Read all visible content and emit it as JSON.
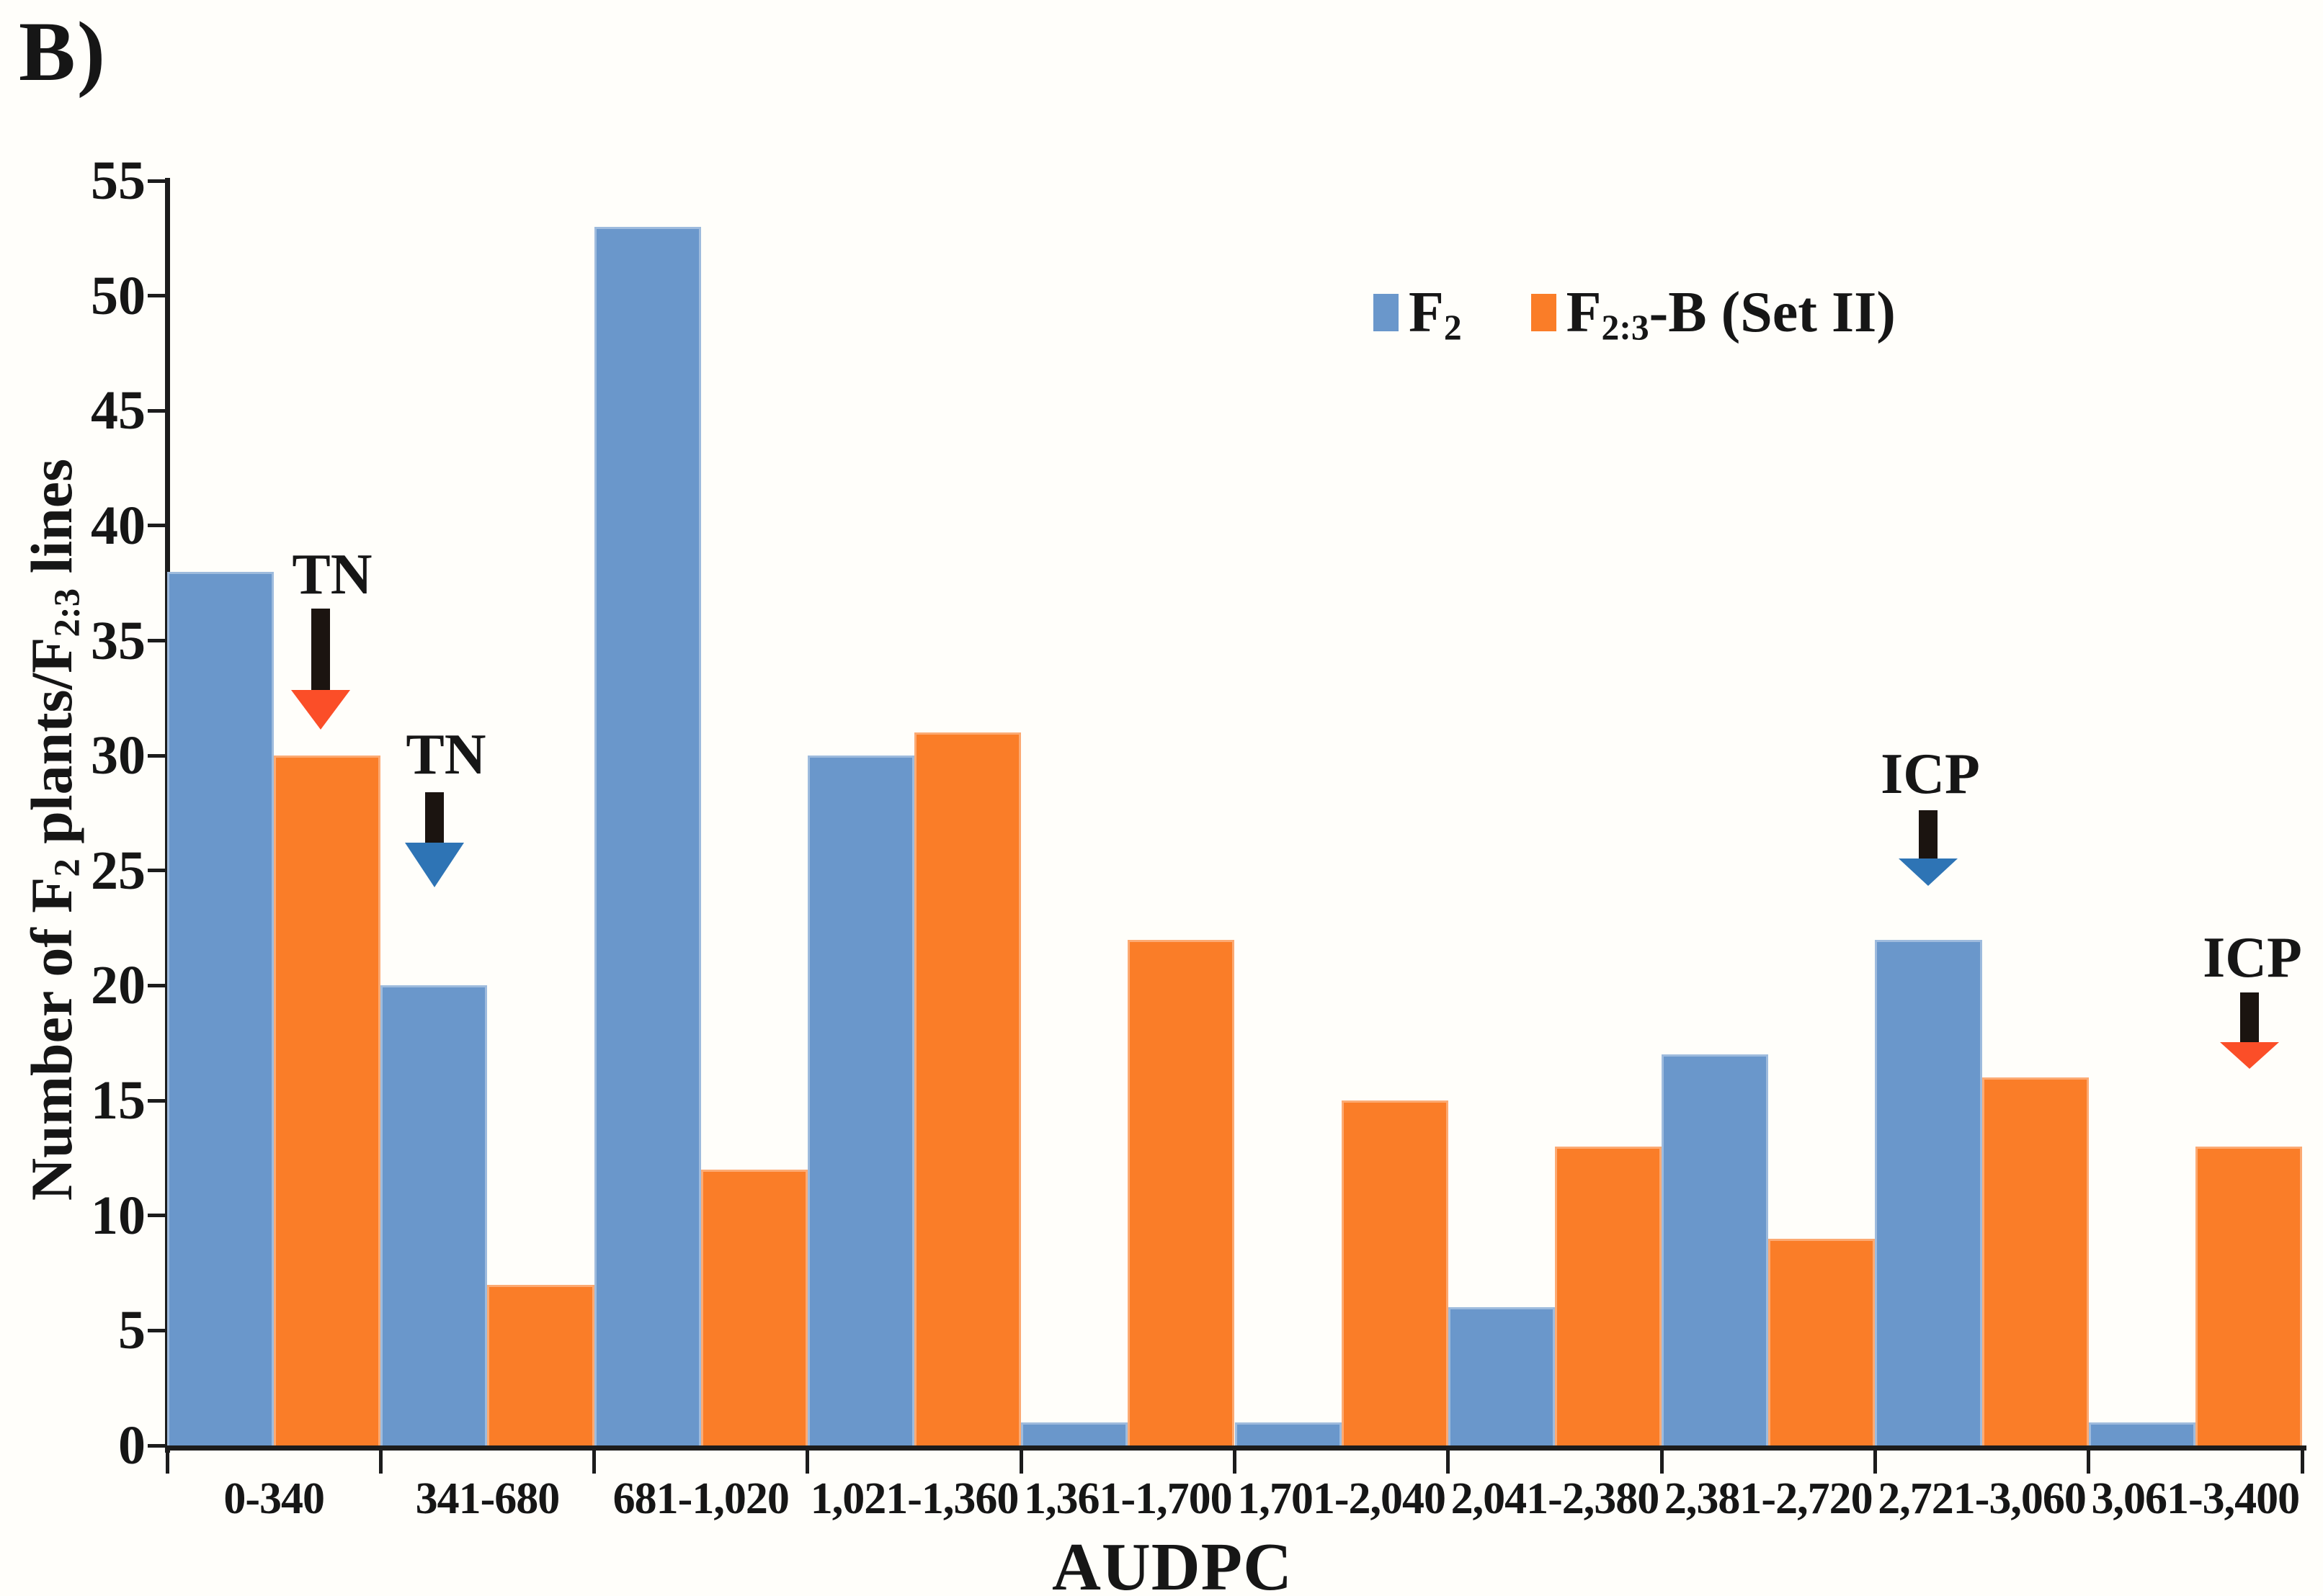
{
  "panel_label": "B)",
  "colors": {
    "bar_blue": "#6A97CB",
    "bar_orange": "#FA7D28",
    "arrow_head_red": "#FB4E28",
    "arrow_head_blue": "#2E74B5",
    "axis": "#1c1c1c",
    "background": "#fffefa"
  },
  "legend": {
    "items": [
      {
        "name": "F2",
        "parts": [
          {
            "t": "F"
          },
          {
            "t": "2",
            "sub": true
          }
        ],
        "color": "#6A97CB"
      },
      {
        "name": "F2:3-B (Set II)",
        "parts": [
          {
            "t": "F"
          },
          {
            "t": "2:3",
            "sub": true
          },
          {
            "t": "-B (Set II)"
          }
        ],
        "color": "#FA7D28"
      }
    ]
  },
  "chart_data": {
    "type": "bar",
    "title": "B)",
    "xlabel": "AUDPC",
    "ylabel": "Number of F2 plants/F2:3 lines",
    "ylabel_parts": [
      {
        "t": "Number of F"
      },
      {
        "t": "2",
        "sub": true
      },
      {
        "t": " plants/F"
      },
      {
        "t": "2:3",
        "sub": true
      },
      {
        "t": " lines"
      }
    ],
    "ylim": [
      0,
      55
    ],
    "yticks": [
      0,
      5,
      10,
      15,
      20,
      25,
      30,
      35,
      40,
      45,
      50,
      55
    ],
    "grid": false,
    "legend_position": "inside-top-right",
    "categories": [
      "0-340",
      "341-680",
      "681-1,020",
      "1,021-1,360",
      "1,361-1,700",
      "1,701-2,040",
      "2,041-2,380",
      "2,381-2,720",
      "2,721-3,060",
      "3,061-3,400"
    ],
    "series": [
      {
        "name": "F2",
        "color": "#6A97CB",
        "values": [
          38,
          20,
          53,
          30,
          1,
          1,
          6,
          17,
          22,
          1
        ]
      },
      {
        "name": "F2:3-B (Set II)",
        "color": "#FA7D28",
        "values": [
          30,
          7,
          12,
          31,
          22,
          15,
          13,
          9,
          16,
          13
        ]
      }
    ],
    "annotations": [
      {
        "label": "TN",
        "target": "F2:3-B (Set II) @ 0-340",
        "text_x": 461,
        "text_y": 798,
        "arrow_x": 445,
        "shaft_top": 845,
        "shaft_bottom": 958,
        "tip_y": 1013,
        "head_color": "#FB4E28"
      },
      {
        "label": "TN",
        "target": "F2 @ 341-680",
        "text_x": 619,
        "text_y": 1048,
        "arrow_x": 603,
        "shaft_top": 1100,
        "shaft_bottom": 1170,
        "tip_y": 1232,
        "head_color": "#2E74B5"
      },
      {
        "label": "ICP",
        "target": "F2 @ 2,721-3,060",
        "text_x": 2679,
        "text_y": 1075,
        "arrow_x": 2676,
        "shaft_top": 1125,
        "shaft_bottom": 1192,
        "tip_y": 1230,
        "head_color": "#2E74B5"
      },
      {
        "label": "ICP",
        "target": "F2:3-B (Set II) @ 3,061-3,400",
        "text_x": 3126,
        "text_y": 1330,
        "arrow_x": 3122,
        "shaft_top": 1378,
        "shaft_bottom": 1447,
        "tip_y": 1484,
        "head_color": "#FB4E28"
      }
    ]
  }
}
